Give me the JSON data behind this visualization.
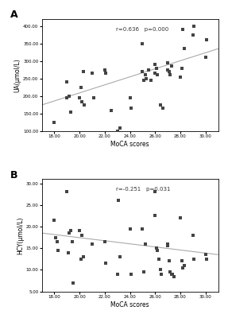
{
  "panel_A": {
    "label": "A",
    "xlabel": "MoCA scores",
    "ylabel": "UA(μmol/L)",
    "annotation": "r=0.636   p=0.000",
    "xlim": [
      17,
      31
    ],
    "ylim": [
      100,
      420
    ],
    "xticks": [
      18,
      20,
      22,
      24,
      26,
      28,
      30
    ],
    "yticks": [
      100,
      150,
      200,
      250,
      300,
      350,
      400
    ],
    "scatter_x": [
      18,
      19,
      19,
      19.2,
      19.3,
      20,
      20.1,
      20.2,
      20.3,
      20.4,
      21,
      21.1,
      22,
      22.1,
      22.5,
      23,
      23.2,
      24,
      24.1,
      25,
      25,
      25.1,
      25.2,
      25.3,
      25.5,
      25.7,
      26,
      26,
      26.1,
      26.2,
      26.4,
      26.6,
      27,
      27,
      27.1,
      27.2,
      27.3,
      28,
      28.1,
      28.2,
      28.3,
      29,
      29.1,
      30,
      30.1
    ],
    "scatter_y": [
      125,
      195,
      240,
      200,
      155,
      195,
      225,
      185,
      270,
      175,
      265,
      195,
      275,
      265,
      160,
      100,
      110,
      195,
      165,
      350,
      270,
      245,
      260,
      250,
      275,
      245,
      290,
      265,
      280,
      260,
      175,
      165,
      275,
      295,
      270,
      260,
      285,
      255,
      280,
      390,
      335,
      375,
      400,
      310,
      360
    ],
    "line_x": [
      17,
      31
    ],
    "line_y": [
      175,
      335
    ],
    "line_color": "#aaaaaa",
    "dot_color": "#444444",
    "dot_size": 5
  },
  "panel_B": {
    "label": "B",
    "xlabel": "MoCA scores",
    "ylabel": "HCY(μmol/L)",
    "annotation": "r=-0.251   p=0.031",
    "xlim": [
      17,
      31
    ],
    "ylim": [
      5,
      31
    ],
    "xticks": [
      18,
      20,
      22,
      24,
      26,
      28,
      30
    ],
    "yticks": [
      5,
      10,
      15,
      20,
      25,
      30
    ],
    "scatter_x": [
      18,
      18.1,
      18.2,
      18.3,
      19,
      19.1,
      19.2,
      19.3,
      19.4,
      19.5,
      20,
      20.1,
      20.2,
      20.3,
      21,
      22,
      22.1,
      23,
      23.1,
      23.2,
      24,
      24.1,
      25,
      25.1,
      25.2,
      26,
      26,
      26.1,
      26.2,
      26.3,
      26.4,
      26.5,
      27,
      27,
      27.1,
      27.2,
      27.3,
      27.4,
      27.5,
      28,
      28.1,
      28.2,
      28.3,
      29,
      29.1,
      30,
      30.1
    ],
    "scatter_y": [
      21.5,
      17.5,
      16.5,
      14.5,
      28,
      14,
      18.5,
      19.0,
      16.5,
      7,
      19,
      12.5,
      18,
      13,
      16,
      16.5,
      11.5,
      9,
      26,
      13,
      19.5,
      9,
      19.5,
      9.5,
      16,
      28,
      22.5,
      15.0,
      14.5,
      12.5,
      10,
      9,
      16,
      15.5,
      12,
      9.5,
      9,
      9,
      8.5,
      22,
      12,
      10.5,
      11,
      18,
      12.5,
      13.5,
      12.5
    ],
    "line_x": [
      17,
      31
    ],
    "line_y": [
      18.5,
      13.5
    ],
    "line_color": "#aaaaaa",
    "dot_color": "#444444",
    "dot_size": 5
  },
  "bg_color": "#ffffff",
  "fig_width": 2.87,
  "fig_height": 4.0,
  "dpi": 100
}
